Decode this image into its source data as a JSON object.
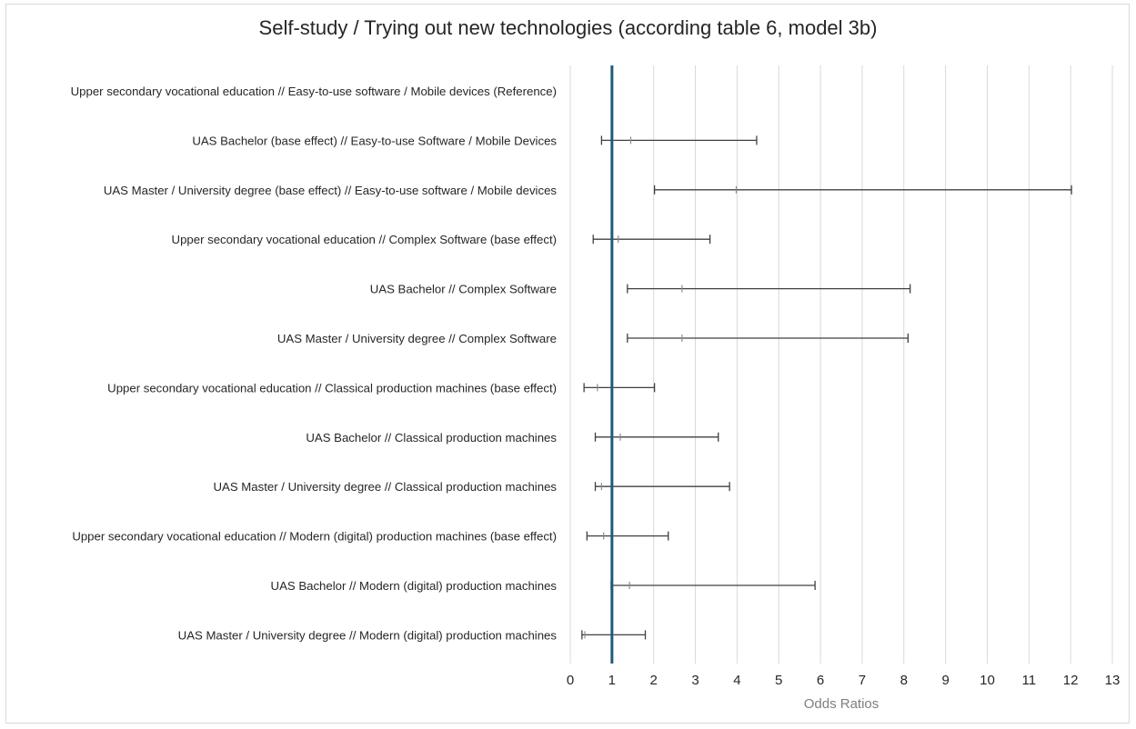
{
  "chart_data": {
    "type": "forest",
    "title": "Self-study / Trying out new technologies (according table 6, model 3b)",
    "xlabel": "Odds Ratios",
    "ylabel": "",
    "xlim": [
      0,
      13
    ],
    "xticks": [
      0,
      1,
      2,
      3,
      4,
      5,
      6,
      7,
      8,
      9,
      10,
      11,
      12,
      13
    ],
    "reference_line": 1,
    "grid": "vertical",
    "colors": {
      "reference_line": "#1f5c78",
      "whisker": "#404040",
      "grid": "#d9d9d9",
      "text": "#262626",
      "axis_label": "#7f7f7f"
    },
    "rows": [
      {
        "label": "Upper secondary vocational education // Easy-to-use software / Mobile devices (Reference)",
        "or": null,
        "lo": null,
        "hi": null
      },
      {
        "label": "UAS Bachelor (base effect) // Easy-to-use Software / Mobile Devices",
        "or": 1.45,
        "lo": 0.75,
        "hi": 4.47
      },
      {
        "label": "UAS Master / University degree (base effect) // Easy-to-use software / Mobile devices",
        "or": 3.98,
        "lo": 2.02,
        "hi": 12.02
      },
      {
        "label": "Upper secondary vocational education // Complex Software (base effect)",
        "or": 1.15,
        "lo": 0.55,
        "hi": 3.35
      },
      {
        "label": "UAS Bachelor // Complex Software",
        "or": 2.68,
        "lo": 1.37,
        "hi": 8.15
      },
      {
        "label": "UAS Master / University degree // Complex Software",
        "or": 2.68,
        "lo": 1.37,
        "hi": 8.1
      },
      {
        "label": "Upper secondary vocational education // Classical production machines (base effect)",
        "or": 0.65,
        "lo": 0.33,
        "hi": 2.02
      },
      {
        "label": "UAS Bachelor // Classical production machines",
        "or": 1.2,
        "lo": 0.6,
        "hi": 3.55
      },
      {
        "label": "UAS Master / University degree // Classical production machines",
        "or": 0.75,
        "lo": 0.6,
        "hi": 3.82
      },
      {
        "label": "Upper secondary vocational education // Modern (digital) production machines (base effect)",
        "or": 0.8,
        "lo": 0.4,
        "hi": 2.35
      },
      {
        "label": "UAS Bachelor // Modern (digital) production machines",
        "or": 1.42,
        "lo": 0.98,
        "hi": 5.87
      },
      {
        "label": "UAS Master / University degree // Modern (digital) production machines",
        "or": 0.35,
        "lo": 0.28,
        "hi": 1.8
      }
    ]
  }
}
